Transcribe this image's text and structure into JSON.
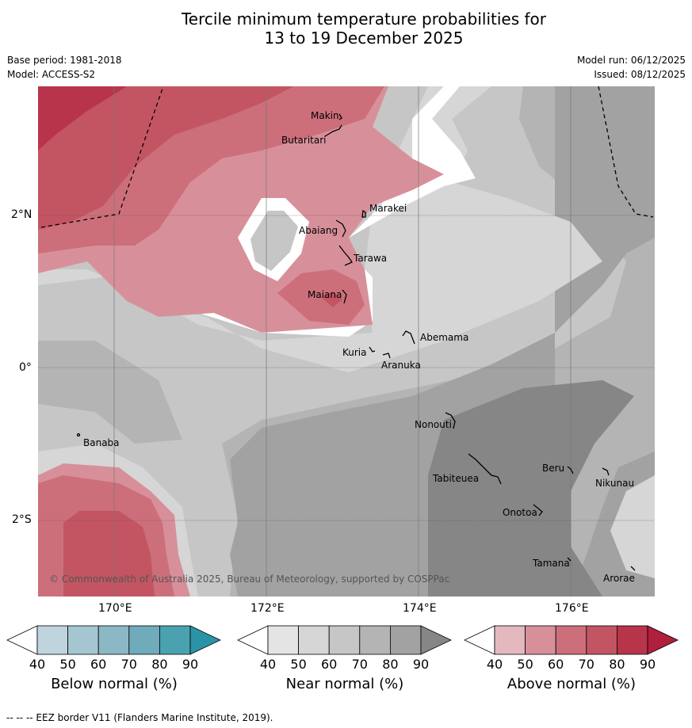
{
  "title": {
    "line1": "Tercile minimum temperature probabilities for",
    "line2": "13 to 19 December 2025"
  },
  "meta": {
    "base_period": "Base period: 1981-2018",
    "model": "Model: ACCESS-S2",
    "model_run": "Model run: 06/12/2025",
    "issued": "Issued: 08/12/2025"
  },
  "axes": {
    "lon_labels": [
      "170°E",
      "172°E",
      "174°E",
      "176°E"
    ],
    "lat_labels": [
      "2°N",
      "0°",
      "2°S"
    ]
  },
  "places": {
    "makin": "Makin",
    "butaritari": "Butaritari",
    "marakei": "Marakei",
    "abaiang": "Abaiang",
    "tarawa": "Tarawa",
    "maiana": "Maiana",
    "abemama": "Abemama",
    "kuria": "Kuria",
    "aranuka": "Aranuka",
    "nonouti": "Nonouti",
    "banaba": "Banaba",
    "beru": "Beru",
    "tabiteuea": "Tabiteuea",
    "nikunau": "Nikunau",
    "onotoa": "Onotoa",
    "tamana": "Tamana",
    "arorae": "Arorae"
  },
  "copyright": "© Commonwealth of Australia 2025, Bureau of Meteorology, supported by COSPPac",
  "colorbars": {
    "below": {
      "label": "Below normal (%)",
      "ticks": [
        "40",
        "50",
        "60",
        "70",
        "80",
        "90"
      ],
      "colors": [
        "#ffffff",
        "#bfd4dc",
        "#a5c6d0",
        "#8bb8c4",
        "#6fabbb",
        "#4aa2b1",
        "#2b93a6"
      ]
    },
    "near": {
      "label": "Near normal (%)",
      "ticks": [
        "40",
        "50",
        "60",
        "70",
        "80",
        "90"
      ],
      "colors": [
        "#ffffff",
        "#e4e4e4",
        "#d6d6d6",
        "#c6c6c6",
        "#b4b4b4",
        "#a2a2a2",
        "#868686"
      ]
    },
    "above": {
      "label": "Above normal (%)",
      "ticks": [
        "40",
        "50",
        "60",
        "70",
        "80",
        "90"
      ],
      "colors": [
        "#ffffff",
        "#e3b8bf",
        "#d7909a",
        "#cc6f7b",
        "#c35562",
        "#b8344b",
        "#b01f3c"
      ]
    }
  },
  "footer": "--  --  -- EEZ border V11 (Flanders Marine Institute, 2019)."
}
